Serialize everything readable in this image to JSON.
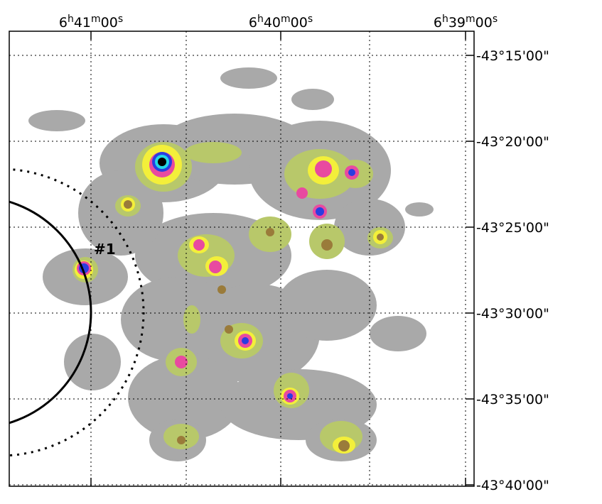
{
  "ra_labels": [
    "6h41m00s",
    "6h40m00s",
    "6h39m00s"
  ],
  "dec_labels": [
    "-43°15'00\"",
    "-43°20'00\"",
    "-43°25'00\"",
    "-43°30'00\"",
    "-43°35'00\"",
    "-43°40'00\""
  ],
  "annotation": "#1"
}
